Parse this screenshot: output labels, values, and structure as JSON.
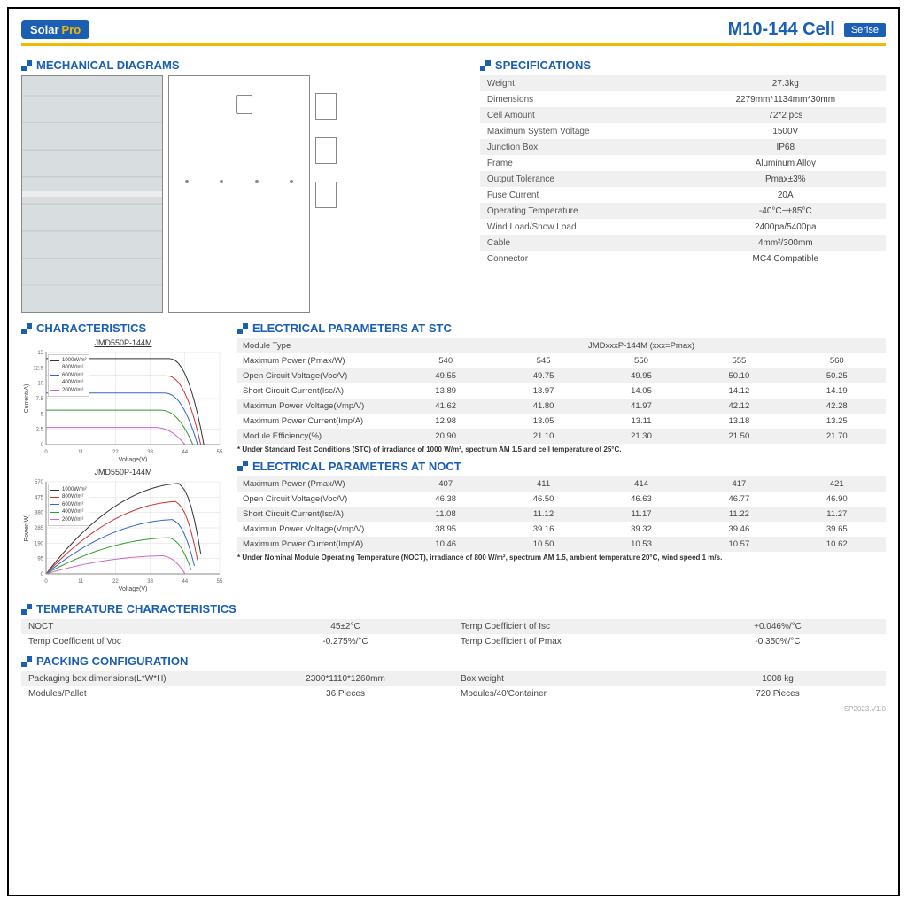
{
  "header": {
    "logo_a": "Solar",
    "logo_b": "Pro",
    "model": "M10-144  Cell",
    "series": "Serise"
  },
  "sections": {
    "mech": "MECHANICAL DIAGRAMS",
    "specs": "SPECIFICATIONS",
    "char": "CHARACTERISTICS",
    "elec_stc": "ELECTRICAL PARAMETERS AT STC",
    "elec_noct": "ELECTRICAL PARAMETERS AT NOCT",
    "temp": "TEMPERATURE CHARACTERISTICS",
    "pack": "PACKING CONFIGURATION"
  },
  "specs": [
    [
      "Weight",
      "27.3kg"
    ],
    [
      "Dimensions",
      "2279mm*1134mm*30mm"
    ],
    [
      "Cell Amount",
      "72*2 pcs"
    ],
    [
      "Maximum System Voltage",
      "1500V"
    ],
    [
      "Junction Box",
      "IP68"
    ],
    [
      "Frame",
      "Aluminum Alloy"
    ],
    [
      "Output Tolerance",
      "Pmax±3%"
    ],
    [
      "Fuse Current",
      "20A"
    ],
    [
      "Operating Temperature",
      "-40°C~+85°C"
    ],
    [
      "Wind Load/Snow Load",
      "2400pa/5400pa"
    ],
    [
      "Cable",
      "4mm²/300mm"
    ],
    [
      "Connector",
      "MC4 Compatible"
    ]
  ],
  "charts": {
    "iv": {
      "title": "JMD550P-144M",
      "xlabel": "Voltage(V)",
      "ylabel": "Current(A)",
      "xticks": [
        0,
        11,
        22,
        33,
        44,
        55
      ],
      "yticks": [
        0,
        2.5,
        5.0,
        7.5,
        10.0,
        12.5,
        15.0
      ],
      "xlim": [
        0,
        55
      ],
      "ylim": [
        0,
        15
      ],
      "series": [
        {
          "label": "1000W/m²",
          "color": "#333333",
          "isc": 14.0,
          "voc": 50
        },
        {
          "label": "800W/m²",
          "color": "#cc3333",
          "isc": 11.2,
          "voc": 49
        },
        {
          "label": "600W/m²",
          "color": "#3366cc",
          "isc": 8.4,
          "voc": 48
        },
        {
          "label": "400W/m²",
          "color": "#339933",
          "isc": 5.6,
          "voc": 46.5
        },
        {
          "label": "200W/m²",
          "color": "#cc66cc",
          "isc": 2.8,
          "voc": 44
        }
      ]
    },
    "pv": {
      "title": "JMD550P-144M",
      "xlabel": "Voltage(V)",
      "ylabel": "Power(W)",
      "xticks": [
        0,
        11,
        22,
        33,
        44,
        55
      ],
      "yticks": [
        0,
        95,
        190,
        285,
        380,
        475,
        570
      ],
      "xlim": [
        0,
        55
      ],
      "ylim": [
        0,
        570
      ],
      "series": [
        {
          "label": "1000W/m²",
          "color": "#333333",
          "pmax": 550,
          "vmp": 42
        },
        {
          "label": "800W/m²",
          "color": "#cc3333",
          "pmax": 440,
          "vmp": 41
        },
        {
          "label": "600W/m²",
          "color": "#3366cc",
          "pmax": 330,
          "vmp": 40
        },
        {
          "label": "400W/m²",
          "color": "#339933",
          "pmax": 220,
          "vmp": 39
        },
        {
          "label": "200W/m²",
          "color": "#cc66cc",
          "pmax": 110,
          "vmp": 37
        }
      ]
    }
  },
  "stc": {
    "header": [
      "Module Type",
      "JMDxxxP-144M  (xxx=Pmax)"
    ],
    "rows": [
      [
        "Maximum Power (Pmax/W)",
        "540",
        "545",
        "550",
        "555",
        "560"
      ],
      [
        "Open Circuit Voltage(Voc/V)",
        "49.55",
        "49.75",
        "49.95",
        "50.10",
        "50.25"
      ],
      [
        "Short Circuit Current(Isc/A)",
        "13.89",
        "13.97",
        "14.05",
        "14.12",
        "14.19"
      ],
      [
        "Maximun Power Voltage(Vmp/V)",
        "41.62",
        "41.80",
        "41.97",
        "42.12",
        "42.28"
      ],
      [
        "Maximum Power Current(Imp/A)",
        "12.98",
        "13.05",
        "13.11",
        "13.18",
        "13.25"
      ],
      [
        "Module Efficiency(%)",
        "20.90",
        "21.10",
        "21.30",
        "21.50",
        "21.70"
      ]
    ],
    "footnote": "* Under Standard Test Conditions (STC) of irradiance of 1000 W/m², spectrum AM 1.5 and cell temperature of 25°C."
  },
  "noct": {
    "rows": [
      [
        "Maximum Power (Pmax/W)",
        "407",
        "411",
        "414",
        "417",
        "421"
      ],
      [
        "Open Circuit Voltage(Voc/V)",
        "46.38",
        "46.50",
        "46.63",
        "46.77",
        "46.90"
      ],
      [
        "Short Circuit Current(Isc/A)",
        "11.08",
        "11.12",
        "11.17",
        "11.22",
        "11.27"
      ],
      [
        "Maximun Power Voltage(Vmp/V)",
        "38.95",
        "39.16",
        "39.32",
        "39.46",
        "39.65"
      ],
      [
        "Maximum Power Current(Imp/A)",
        "10.46",
        "10.50",
        "10.53",
        "10.57",
        "10.62"
      ]
    ],
    "footnote": "* Under Nominal Module Operating Temperature (NOCT), irradiance of 800 W/m², spectrum AM 1.5, ambient temperature 20°C, wind speed 1 m/s."
  },
  "temp": [
    [
      "NOCT",
      "45±2°C",
      "Temp Coefficient of Isc",
      "+0.046%/°C"
    ],
    [
      "Temp Coefficient of Voc",
      "-0.275%/°C",
      "Temp Coefficient of Pmax",
      "-0.350%/°C"
    ]
  ],
  "pack": [
    [
      "Packaging box dimensions(L*W*H)",
      "2300*1110*1260mm",
      "Box weight",
      "1008 kg"
    ],
    [
      "Modules/Pallet",
      "36 Pieces",
      "Modules/40'Container",
      "720 Pieces"
    ]
  ],
  "footer": "SP2023.V1.0"
}
